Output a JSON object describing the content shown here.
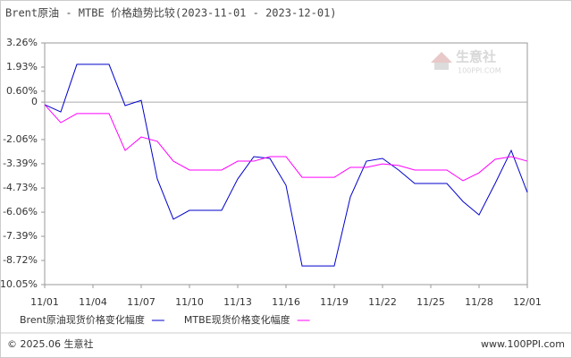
{
  "chart_data": {
    "type": "line",
    "title": "Brent原油 - MTBE 价格趋势比较(2023-11-01 - 2023-12-01)",
    "categories": [
      "11/01",
      null,
      null,
      "11/04",
      null,
      null,
      "11/07",
      null,
      null,
      "11/10",
      null,
      null,
      "11/13",
      null,
      null,
      "11/16",
      null,
      null,
      "11/19",
      null,
      null,
      "11/22",
      null,
      null,
      "11/25",
      null,
      null,
      "11/28",
      null,
      null,
      "12/01"
    ],
    "series": [
      {
        "name": "Brent原油现货价格变化幅度",
        "color": "#0000cc",
        "values": [
          -0.14,
          -0.54,
          2.08,
          2.08,
          2.08,
          -0.19,
          0.1,
          -4.23,
          -6.45,
          -5.96,
          -5.96,
          -5.96,
          -4.23,
          -3.0,
          -3.1,
          -4.58,
          -9.02,
          -9.02,
          -9.02,
          -5.22,
          -3.25,
          -3.1,
          -3.74,
          -4.48,
          -4.48,
          -4.48,
          -5.47,
          -6.21,
          -4.48,
          -2.66,
          -4.97
        ]
      },
      {
        "name": "MTBE现货价格变化幅度",
        "color": "#ff00ff",
        "values": [
          -0.14,
          -1.13,
          -0.63,
          -0.63,
          -0.63,
          -2.66,
          -1.92,
          -2.16,
          -3.25,
          -3.74,
          -3.74,
          -3.74,
          -3.25,
          -3.25,
          -3.0,
          -3.0,
          -4.14,
          -4.14,
          -4.14,
          -3.59,
          -3.59,
          -3.4,
          -3.49,
          -3.74,
          -3.74,
          -3.74,
          -4.33,
          -3.89,
          -3.15,
          -3.0,
          -3.25
        ]
      }
    ],
    "ylim": [
      -10.05,
      3.26
    ],
    "yticks": [
      {
        "value": 3.26,
        "label": "3.26%"
      },
      {
        "value": 1.93,
        "label": "1.93%"
      },
      {
        "value": 0.6,
        "label": "0.60%"
      },
      0,
      {
        "value": -2.06,
        "label": "-2.06%"
      },
      {
        "value": -3.39,
        "label": "-3.39%"
      },
      {
        "value": -4.73,
        "label": "-4.73%"
      },
      {
        "value": -6.06,
        "label": "-6.06%"
      },
      {
        "value": -7.39,
        "label": "-7.39%"
      },
      {
        "value": -8.72,
        "label": "-8.72%"
      },
      {
        "value": -10.05,
        "label": "-10.05%"
      }
    ],
    "grid": false,
    "watermark": "生意社",
    "watermark_sub": "100PPI.COM",
    "footer_left": "© 2025.06 生意社",
    "footer_right": "www.100PPI.com"
  }
}
